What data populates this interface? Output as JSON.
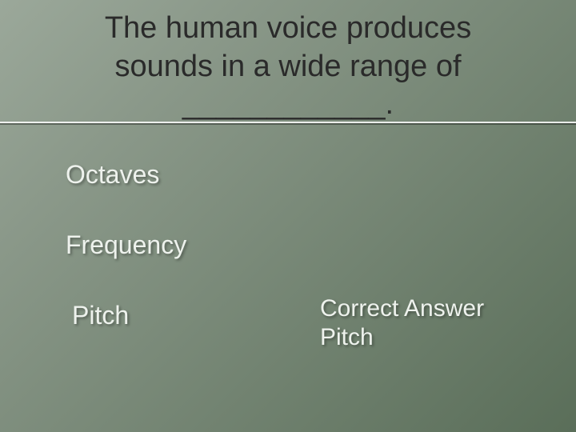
{
  "slide": {
    "background_gradient": [
      "#9ba89a",
      "#8a9889",
      "#7a8a79",
      "#6a7c69",
      "#5a6e59"
    ],
    "title": {
      "line1": "The human voice produces",
      "line2": "sounds in a wide range of",
      "line3": "____________.",
      "fontsize": 38,
      "color": "#2a2a2a"
    },
    "underline": {
      "color_light": "#ffffff",
      "color_shadow": "#000000",
      "opacity_light": 0.85,
      "opacity_shadow": 0.35
    },
    "options": [
      {
        "label": "Octaves"
      },
      {
        "label": "Frequency"
      },
      {
        "label": "Pitch"
      }
    ],
    "option_style": {
      "fontsize": 32,
      "color": "#eef2ed",
      "shadow": "rgba(0,0,0,0.35)"
    },
    "answer": {
      "heading": "Correct Answer",
      "value": "Pitch",
      "fontsize": 30,
      "color": "#eef2ed"
    }
  }
}
